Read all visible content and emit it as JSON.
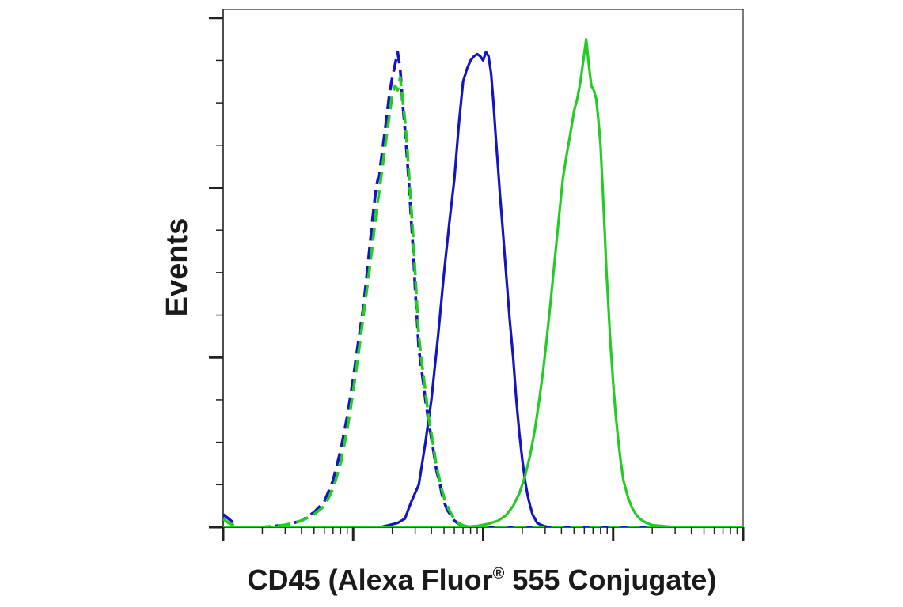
{
  "chart_data": {
    "type": "line",
    "title": "",
    "xlabel": "CD45 (Alexa Fluor® 555 Conjugate)",
    "xlabel_parts": {
      "before": "CD45 (Alexa Fluor",
      "mark": "®",
      "after": " 555 Conjugate)"
    },
    "ylabel": "Events",
    "x_scale": "log",
    "xlim": [
      1,
      10000
    ],
    "ylim": [
      0,
      1.22
    ],
    "tick_labels_visible": false,
    "grid": false,
    "legend": "none",
    "series": [
      {
        "color": "#1414c0",
        "style": "solid",
        "x": [
          1,
          10,
          16,
          19,
          22,
          25,
          28,
          32,
          36,
          40,
          45,
          50,
          55,
          60,
          65,
          70,
          75,
          80,
          85,
          90,
          95,
          100,
          105,
          110,
          115,
          120,
          125,
          130,
          135,
          140,
          150,
          160,
          170,
          180,
          190,
          200,
          210,
          220,
          230,
          240,
          250,
          260,
          280,
          300,
          320,
          350,
          400,
          1000,
          10000
        ],
        "y": [
          0,
          0,
          0,
          0.005,
          0.01,
          0.02,
          0.06,
          0.1,
          0.2,
          0.3,
          0.45,
          0.6,
          0.72,
          0.82,
          0.95,
          1.05,
          1.08,
          1.1,
          1.11,
          1.115,
          1.11,
          1.1,
          1.12,
          1.11,
          1.07,
          1.0,
          0.92,
          0.85,
          0.78,
          0.72,
          0.6,
          0.49,
          0.4,
          0.3,
          0.22,
          0.16,
          0.11,
          0.075,
          0.05,
          0.03,
          0.02,
          0.01,
          0.005,
          0.002,
          0,
          0,
          0,
          0,
          0
        ]
      },
      {
        "color": "#1414c0",
        "style": "dashed",
        "x": [
          1,
          1.1,
          1.2,
          1.3,
          2,
          3,
          4,
          5,
          6,
          7,
          8,
          9,
          10,
          11,
          12,
          13,
          14,
          15,
          16,
          17,
          18,
          19,
          20,
          21,
          22,
          23,
          24,
          25,
          26,
          27,
          28,
          29,
          30,
          31,
          32,
          34,
          36,
          38,
          40,
          42,
          44,
          46,
          48,
          50,
          53,
          56,
          60,
          65,
          70,
          80,
          1000,
          10000
        ],
        "y": [
          0.03,
          0.02,
          0.01,
          0,
          0,
          0.005,
          0.015,
          0.035,
          0.06,
          0.11,
          0.18,
          0.26,
          0.35,
          0.44,
          0.52,
          0.62,
          0.72,
          0.8,
          0.84,
          0.9,
          0.96,
          1.02,
          1.06,
          1.09,
          1.12,
          1.08,
          1.0,
          0.94,
          0.87,
          0.8,
          0.72,
          0.65,
          0.56,
          0.49,
          0.42,
          0.36,
          0.3,
          0.25,
          0.21,
          0.17,
          0.13,
          0.11,
          0.08,
          0.06,
          0.04,
          0.03,
          0.015,
          0.008,
          0.003,
          0,
          0,
          0
        ]
      },
      {
        "color": "#22cc22",
        "style": "dashed",
        "x": [
          1,
          1.1,
          1.2,
          1.3,
          2,
          3,
          4,
          5,
          6,
          7,
          8,
          9,
          10,
          11,
          12,
          13,
          14,
          15,
          16,
          17,
          18,
          19,
          20,
          21,
          22,
          23,
          24,
          25,
          26,
          27,
          28,
          29,
          30,
          31,
          32,
          34,
          36,
          38,
          40,
          42,
          44,
          46,
          48,
          50,
          53,
          56,
          60,
          65,
          70,
          80,
          1000,
          10000
        ],
        "y": [
          0.02,
          0.01,
          0.005,
          0,
          0,
          0.005,
          0.015,
          0.03,
          0.05,
          0.09,
          0.15,
          0.23,
          0.32,
          0.41,
          0.5,
          0.58,
          0.66,
          0.74,
          0.8,
          0.86,
          0.92,
          0.97,
          1.02,
          1.04,
          1.03,
          1.06,
          1.01,
          0.96,
          0.9,
          0.82,
          0.75,
          0.68,
          0.6,
          0.52,
          0.45,
          0.38,
          0.32,
          0.26,
          0.22,
          0.18,
          0.14,
          0.115,
          0.09,
          0.07,
          0.05,
          0.035,
          0.018,
          0.009,
          0.004,
          0,
          0,
          0
        ]
      },
      {
        "color": "#22cc22",
        "style": "solid",
        "x": [
          1,
          50,
          70,
          90,
          110,
          130,
          150,
          170,
          190,
          210,
          230,
          250,
          270,
          290,
          310,
          330,
          350,
          380,
          410,
          440,
          470,
          500,
          530,
          560,
          590,
          620,
          650,
          680,
          710,
          740,
          770,
          800,
          830,
          860,
          890,
          920,
          950,
          1000,
          1050,
          1100,
          1150,
          1200,
          1300,
          1400,
          1500,
          1600,
          1800,
          2000,
          2500,
          3000,
          10000
        ],
        "y": [
          0,
          0,
          0,
          0.003,
          0.008,
          0.015,
          0.028,
          0.05,
          0.08,
          0.12,
          0.17,
          0.23,
          0.3,
          0.37,
          0.45,
          0.53,
          0.61,
          0.72,
          0.82,
          0.88,
          0.93,
          0.98,
          1.01,
          1.05,
          1.1,
          1.15,
          1.09,
          1.04,
          1.03,
          1.01,
          0.96,
          0.9,
          0.8,
          0.7,
          0.6,
          0.52,
          0.44,
          0.34,
          0.26,
          0.2,
          0.15,
          0.11,
          0.07,
          0.045,
          0.03,
          0.02,
          0.01,
          0.005,
          0.002,
          0,
          0
        ]
      }
    ]
  }
}
